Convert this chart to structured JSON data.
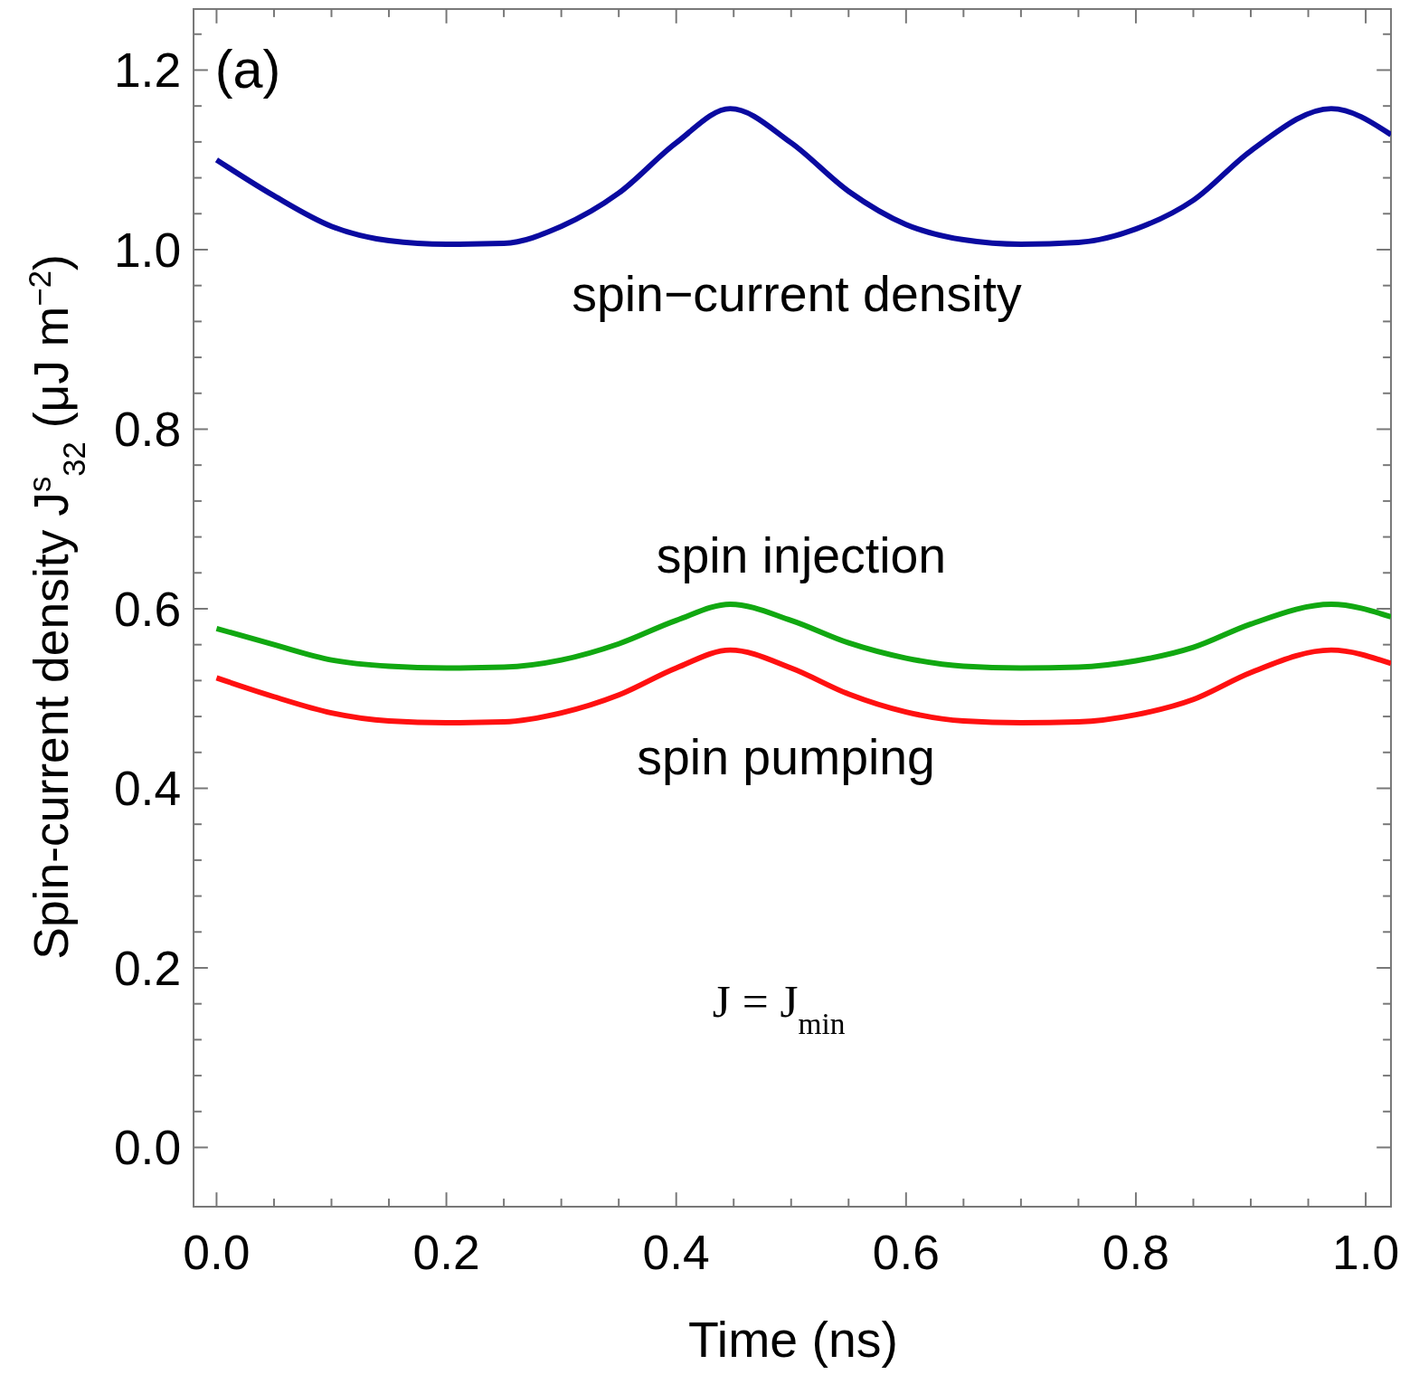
{
  "chart_data": {
    "type": "line",
    "xlabel": "Time  (ns)",
    "ylabel": "Spin-current  density  J$^{s}$$_{32}$ (μJ m$^{−2}$)",
    "x": [
      0,
      0.05,
      0.1,
      0.15,
      0.2,
      0.25,
      0.3,
      0.35,
      0.4,
      0.447,
      0.5,
      0.55,
      0.6,
      0.65,
      0.7,
      0.75,
      0.8,
      0.85,
      0.9,
      0.97,
      1.022
    ],
    "series": [
      {
        "name": "spin−current density",
        "color": "#0a0aa0",
        "values": [
          1.1,
          1.06,
          1.026,
          1.01,
          1.006,
          1.007,
          1.026,
          1.063,
          1.119,
          1.157,
          1.119,
          1.065,
          1.028,
          1.011,
          1.006,
          1.008,
          1.023,
          1.055,
          1.11,
          1.157,
          1.128
        ]
      },
      {
        "name": "spin injection",
        "color": "#11a811",
        "values": [
          0.578,
          0.56,
          0.543,
          0.536,
          0.534,
          0.535,
          0.543,
          0.561,
          0.587,
          0.605,
          0.587,
          0.562,
          0.545,
          0.536,
          0.534,
          0.535,
          0.542,
          0.557,
          0.583,
          0.605,
          0.591
        ]
      },
      {
        "name": "spin pumping",
        "color": "#ff1010",
        "values": [
          0.523,
          0.502,
          0.484,
          0.475,
          0.473,
          0.474,
          0.484,
          0.504,
          0.534,
          0.554,
          0.534,
          0.505,
          0.485,
          0.475,
          0.473,
          0.474,
          0.482,
          0.499,
          0.529,
          0.554,
          0.539
        ]
      }
    ],
    "xlim": [
      -0.02,
      1.022
    ],
    "ylim": [
      -0.066,
      1.268
    ],
    "xticks": [
      {
        "value": 0,
        "label": "0.0"
      },
      {
        "value": 0.05,
        "label": null
      },
      {
        "value": 0.1,
        "label": null
      },
      {
        "value": 0.15,
        "label": null
      },
      0.2,
      {
        "value": 0.25,
        "label": null
      },
      {
        "value": 0.3,
        "label": null
      },
      {
        "value": 0.35,
        "label": null
      },
      0.4,
      {
        "value": 0.45,
        "label": null
      },
      {
        "value": 0.5,
        "label": null
      },
      {
        "value": 0.55,
        "label": null
      },
      0.6,
      {
        "value": 0.65,
        "label": null
      },
      {
        "value": 0.7,
        "label": null
      },
      {
        "value": 0.75,
        "label": null
      },
      0.8,
      {
        "value": 0.85,
        "label": null
      },
      {
        "value": 0.9,
        "label": null
      },
      {
        "value": 0.95,
        "label": null
      },
      {
        "value": 1.0,
        "label": "1.0"
      }
    ],
    "yticks": [
      {
        "value": 0,
        "label": "0.0"
      },
      {
        "value": 0.04,
        "label": null
      },
      {
        "value": 0.08,
        "label": null
      },
      {
        "value": 0.12,
        "label": null
      },
      {
        "value": 0.16,
        "label": null
      },
      0.2,
      {
        "value": 0.24,
        "label": null
      },
      {
        "value": 0.28,
        "label": null
      },
      {
        "value": 0.32,
        "label": null
      },
      {
        "value": 0.36,
        "label": null
      },
      0.4,
      {
        "value": 0.44,
        "label": null
      },
      {
        "value": 0.48,
        "label": null
      },
      {
        "value": 0.52,
        "label": null
      },
      {
        "value": 0.56,
        "label": null
      },
      0.6,
      {
        "value": 0.64,
        "label": null
      },
      {
        "value": 0.68,
        "label": null
      },
      {
        "value": 0.72,
        "label": null
      },
      {
        "value": 0.76,
        "label": null
      },
      0.8,
      {
        "value": 0.84,
        "label": null
      },
      {
        "value": 0.88,
        "label": null
      },
      {
        "value": 0.92,
        "label": null
      },
      {
        "value": 0.96,
        "label": null
      },
      {
        "value": 1.0,
        "label": "1.0"
      },
      {
        "value": 1.04,
        "label": null
      },
      {
        "value": 1.08,
        "label": null
      },
      {
        "value": 1.12,
        "label": null
      },
      {
        "value": 1.16,
        "label": null
      },
      1.2,
      {
        "value": 1.24,
        "label": null
      }
    ],
    "annotations": [
      "(a)",
      "J = J$_{min}$"
    ],
    "grid": false,
    "line_style": "solid"
  }
}
